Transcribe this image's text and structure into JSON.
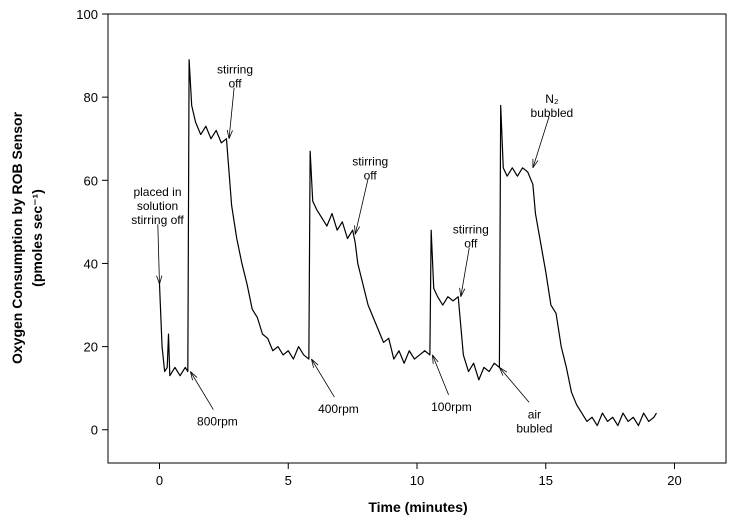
{
  "chart_data": {
    "type": "line",
    "xlabel": "Time (minutes)",
    "ylabel": [
      "Oxygen Consumption by ROB Sensor",
      "(pmoles sec⁻¹)"
    ],
    "xlim": [
      -2,
      22
    ],
    "ylim": [
      -8,
      100
    ],
    "xticks": [
      0,
      5,
      10,
      15,
      20
    ],
    "yticks": [
      0,
      20,
      40,
      60,
      80,
      100
    ],
    "color": "#000000",
    "x": [
      0,
      0.1,
      0.2,
      0.3,
      0.35,
      0.4,
      0.6,
      0.8,
      1.0,
      1.1,
      1.15,
      1.25,
      1.4,
      1.6,
      1.8,
      2.0,
      2.2,
      2.4,
      2.6,
      2.7,
      2.8,
      3.0,
      3.2,
      3.4,
      3.6,
      3.8,
      4.0,
      4.2,
      4.4,
      4.6,
      4.8,
      5.0,
      5.2,
      5.4,
      5.6,
      5.8,
      5.85,
      5.95,
      6.1,
      6.3,
      6.5,
      6.7,
      6.9,
      7.1,
      7.3,
      7.5,
      7.6,
      7.7,
      7.9,
      8.1,
      8.3,
      8.5,
      8.7,
      8.9,
      9.1,
      9.3,
      9.5,
      9.7,
      9.9,
      10.1,
      10.3,
      10.5,
      10.55,
      10.65,
      10.8,
      11.0,
      11.2,
      11.4,
      11.6,
      11.7,
      11.8,
      12.0,
      12.2,
      12.4,
      12.6,
      12.8,
      13.0,
      13.2,
      13.25,
      13.35,
      13.5,
      13.7,
      13.9,
      14.1,
      14.3,
      14.5,
      14.6,
      14.8,
      15.0,
      15.2,
      15.4,
      15.6,
      15.8,
      16.0,
      16.2,
      16.4,
      16.6,
      16.8,
      17.0,
      17.2,
      17.4,
      17.6,
      17.8,
      18.0,
      18.2,
      18.4,
      18.6,
      18.8,
      19.0,
      19.2,
      19.3
    ],
    "values": [
      35,
      20,
      14,
      15,
      23,
      13,
      15,
      13,
      15,
      14,
      89,
      78,
      74,
      71,
      73,
      70,
      72,
      69,
      70,
      62,
      54,
      46,
      40,
      35,
      29,
      27,
      23,
      22,
      19,
      20,
      18,
      19,
      17,
      20,
      18,
      17,
      67,
      55,
      53,
      51,
      49,
      52,
      48,
      50,
      46,
      48,
      45,
      40,
      35,
      30,
      27,
      24,
      21,
      22,
      17,
      19,
      16,
      19,
      17,
      18,
      19,
      18,
      48,
      34,
      32,
      30,
      32,
      31,
      32,
      25,
      18,
      14,
      16,
      12,
      15,
      14,
      16,
      15,
      78,
      63,
      61,
      63,
      61,
      63,
      62,
      59,
      52,
      45,
      38,
      30,
      28,
      20,
      15,
      9,
      6,
      4,
      2,
      3,
      1,
      4,
      2,
      3,
      1,
      4,
      2,
      3,
      1,
      4,
      2,
      3,
      4
    ],
    "annotations": [
      {
        "text": [
          "placed in",
          "solution",
          "stirring off"
        ],
        "x": 0,
        "y": 35
      },
      {
        "text": [
          "800rpm"
        ],
        "x": 1.2,
        "y": 14
      },
      {
        "text": [
          "stirring",
          "off"
        ],
        "x": 2.7,
        "y": 70
      },
      {
        "text": [
          "400rpm"
        ],
        "x": 5.9,
        "y": 17
      },
      {
        "text": [
          "stirring",
          "off"
        ],
        "x": 7.6,
        "y": 47
      },
      {
        "text": [
          "100rpm"
        ],
        "x": 10.6,
        "y": 18
      },
      {
        "text": [
          "stirring",
          "off"
        ],
        "x": 11.7,
        "y": 32
      },
      {
        "text": [
          "air",
          "bubled"
        ],
        "x": 13.2,
        "y": 15
      },
      {
        "text": [
          "N₂",
          "bubbled"
        ],
        "x": 14.5,
        "y": 63
      }
    ]
  }
}
